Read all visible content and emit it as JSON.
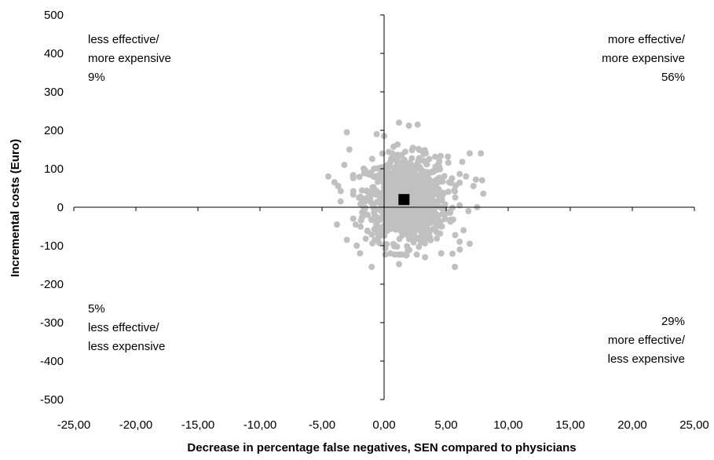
{
  "chart_data": {
    "type": "scatter",
    "xlabel": "Decrease in percentage false negatives, SEN compared to physicians",
    "ylabel": "Incremental costs (Euro)",
    "xlim": [
      -25,
      25
    ],
    "ylim": [
      -500,
      500
    ],
    "x_ticks": [
      -25,
      -20,
      -15,
      -10,
      -5,
      0,
      5,
      10,
      15,
      20,
      25
    ],
    "x_tick_labels": [
      "-25,00",
      "-20,00",
      "-15,00",
      "-10,00",
      "-5,00",
      "0,00",
      "5,00",
      "10,00",
      "15,00",
      "20,00",
      "25,00"
    ],
    "y_ticks": [
      500,
      400,
      300,
      200,
      100,
      0,
      -100,
      -200,
      -300,
      -400,
      -500
    ],
    "y_tick_labels": [
      "500",
      "400",
      "300",
      "200",
      "100",
      "0",
      "-100",
      "-200",
      "-300",
      "-400",
      "-500"
    ],
    "grid": false,
    "legend": "none",
    "quadrant_labels": {
      "top_left": [
        "less effective/",
        "more expensive",
        "9%"
      ],
      "top_right": [
        "more effective/",
        "more expensive",
        "56%"
      ],
      "bottom_left": [
        "5%",
        "less effective/",
        "less expensive"
      ],
      "bottom_right": [
        "29%",
        "more effective/",
        "less expensive"
      ]
    },
    "point_estimate": {
      "x": 1.6,
      "y": 20
    },
    "cloud": {
      "center_x": 1.8,
      "center_y": 20,
      "sd_x": 1.65,
      "sd_y": 55,
      "n": 1000
    },
    "outlier_points": [
      [
        -3.0,
        195
      ],
      [
        1.2,
        220
      ],
      [
        2.0,
        212
      ],
      [
        2.7,
        215
      ],
      [
        0.0,
        185
      ],
      [
        -0.6,
        190
      ],
      [
        -4.5,
        80
      ],
      [
        -4.0,
        65
      ],
      [
        -3.7,
        55
      ],
      [
        -3.5,
        42
      ],
      [
        -3.2,
        110
      ],
      [
        -2.8,
        150
      ],
      [
        7.8,
        140
      ],
      [
        7.9,
        70
      ],
      [
        8.0,
        35
      ],
      [
        6.9,
        140
      ],
      [
        6.3,
        118
      ],
      [
        6.6,
        80
      ],
      [
        7.4,
        72
      ],
      [
        7.2,
        55
      ],
      [
        7.5,
        0
      ],
      [
        6.8,
        -10
      ],
      [
        6.4,
        -60
      ],
      [
        6.9,
        -95
      ],
      [
        -1.0,
        -155
      ],
      [
        1.2,
        -148
      ],
      [
        1.8,
        -125
      ],
      [
        5.7,
        -155
      ],
      [
        3.3,
        -130
      ],
      [
        -3.8,
        -45
      ],
      [
        -3.0,
        -85
      ],
      [
        -2.2,
        -100
      ],
      [
        0.5,
        -120
      ],
      [
        4.6,
        -120
      ],
      [
        6.1,
        -110
      ],
      [
        -3.5,
        15
      ]
    ],
    "colors": {
      "points": "#c0c0c0",
      "point_estimate": "#000000",
      "axes": "#000000"
    }
  }
}
